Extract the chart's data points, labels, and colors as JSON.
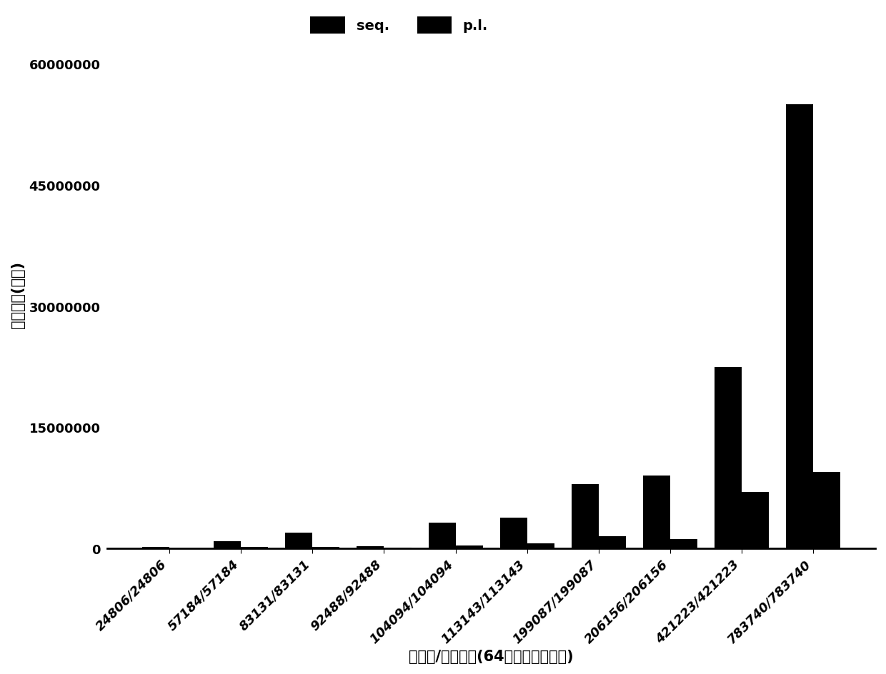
{
  "categories": [
    "24806/24806",
    "57184/57184",
    "83131/83131",
    "92488/92488",
    "104094/104094",
    "113143/113143",
    "199087/199087",
    "206156/206156",
    "421223/421223",
    "783740/783740"
  ],
  "seq_values": [
    150000,
    900000,
    2000000,
    300000,
    3200000,
    3800000,
    8000000,
    9000000,
    22500000,
    55000000
  ],
  "pl_values": [
    30000,
    150000,
    200000,
    100000,
    350000,
    600000,
    1500000,
    1200000,
    7000000,
    9500000
  ],
  "seq_color": "#000000",
  "pl_color": "#000000",
  "legend_labels": [
    "seq.",
    "p.l."
  ],
  "ylabel": "运行时间(微秒)",
  "xlabel": "被乘数/乘数规模(64位无符号长整型)",
  "ylim": [
    0,
    63000000
  ],
  "yticks": [
    0,
    15000000,
    30000000,
    45000000,
    60000000
  ],
  "bar_width": 0.38,
  "background_color": "#ffffff",
  "tick_fontsize": 13,
  "label_fontsize": 15,
  "legend_fontsize": 14
}
